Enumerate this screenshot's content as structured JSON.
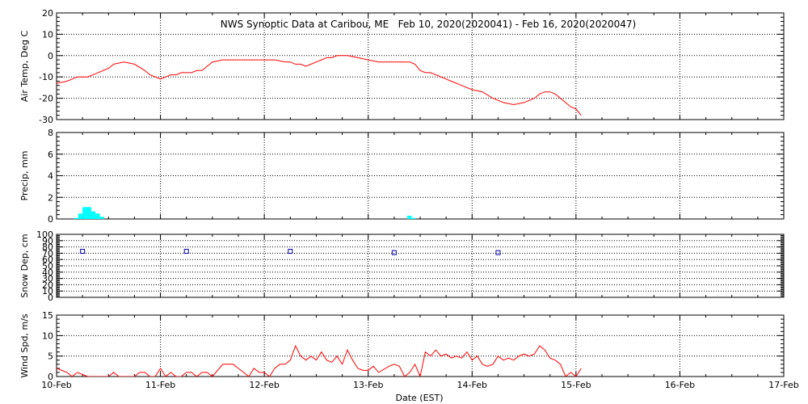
{
  "title": "NWS Synoptic Data at Caribou, ME   Feb 10, 2020(2020041) - Feb 16, 2020(2020047)",
  "xlabel": "Date (EST)",
  "x_ticks": [
    "10-Feb",
    "11-Feb",
    "12-Feb",
    "13-Feb",
    "14-Feb",
    "15-Feb",
    "16-Feb",
    "17-Feb"
  ],
  "colors": {
    "temp": "#ff0000",
    "precip": "#00ffff",
    "snow": "#0000aa",
    "wind": "#ff0000",
    "axis": "#000000"
  },
  "chart_data": [
    {
      "type": "line",
      "ylabel": "Air Temp, Deg C",
      "ylim": [
        -30,
        20
      ],
      "yticks": [
        -30,
        -20,
        -10,
        0,
        10,
        20
      ],
      "grid": true,
      "x_unit": "days since 10-Feb 00:00 EST",
      "series": [
        {
          "color": "#ff0000",
          "x": [
            0,
            0.1,
            0.2,
            0.3,
            0.4,
            0.5,
            0.55,
            0.65,
            0.75,
            0.85,
            0.9,
            0.95,
            1.0,
            1.05,
            1.1,
            1.15,
            1.2,
            1.25,
            1.3,
            1.35,
            1.4,
            1.45,
            1.5,
            1.6,
            1.7,
            1.8,
            1.9,
            2.0,
            2.1,
            2.2,
            2.25,
            2.3,
            2.35,
            2.4,
            2.45,
            2.5,
            2.55,
            2.6,
            2.65,
            2.7,
            2.75,
            2.8,
            2.9,
            3.0,
            3.1,
            3.2,
            3.25,
            3.3,
            3.35,
            3.4,
            3.45,
            3.5,
            3.55,
            3.6,
            3.7,
            3.8,
            3.9,
            4.0,
            4.1,
            4.2,
            4.3,
            4.4,
            4.5,
            4.6,
            4.65,
            4.7,
            4.75,
            4.8,
            4.85,
            4.9,
            4.95,
            5.0,
            5.05
          ],
          "y": [
            -13,
            -12,
            -10,
            -10,
            -8,
            -6,
            -4,
            -3,
            -4,
            -7,
            -9,
            -10,
            -11,
            -10,
            -9,
            -9,
            -8,
            -8,
            -8,
            -7,
            -7,
            -5,
            -3,
            -2,
            -2,
            -2,
            -2,
            -2,
            -2,
            -3,
            -3,
            -4,
            -4,
            -5,
            -4,
            -3,
            -2,
            -1,
            -1,
            0,
            0,
            0,
            -1,
            -2,
            -3,
            -3,
            -3,
            -3,
            -3,
            -3,
            -4,
            -7,
            -8,
            -8,
            -10,
            -12,
            -14,
            -16,
            -17,
            -20,
            -22,
            -23,
            -22,
            -20,
            -18,
            -17,
            -17,
            -18,
            -20,
            -22,
            -24,
            -25,
            -28
          ]
        }
      ]
    },
    {
      "type": "bar",
      "ylabel": "Precip, mm",
      "ylim": [
        0,
        8
      ],
      "yticks": [
        0,
        2,
        4,
        6,
        8
      ],
      "grid": true,
      "x_unit": "days since 10-Feb 00:00 EST",
      "bar_width_days": 0.0417,
      "series": [
        {
          "color": "#00ffff",
          "x": [
            0.167,
            0.208,
            0.25,
            0.292,
            0.333,
            0.375,
            0.417,
            3.375,
            3.417
          ],
          "y": [
            0.1,
            0.5,
            1.1,
            1.1,
            0.7,
            0.5,
            0.2,
            0.3,
            0.1
          ]
        }
      ]
    },
    {
      "type": "scatter",
      "ylabel": "Snow Dep, cm",
      "ylim": [
        0,
        100
      ],
      "yticks": [
        0,
        10,
        20,
        30,
        40,
        50,
        60,
        70,
        80,
        90,
        100
      ],
      "grid": true,
      "x_unit": "days since 10-Feb 00:00 EST",
      "series": [
        {
          "color": "#0000aa",
          "marker": "square",
          "x": [
            0.25,
            1.25,
            2.25,
            3.25,
            4.25
          ],
          "y": [
            73,
            73,
            73,
            71,
            71
          ]
        }
      ]
    },
    {
      "type": "line",
      "ylabel": "Wind Spd, m/s",
      "ylim": [
        0,
        15
      ],
      "yticks": [
        0,
        5,
        10,
        15
      ],
      "grid": true,
      "x_unit": "days since 10-Feb 00:00 EST",
      "series": [
        {
          "color": "#ff0000",
          "x": [
            0,
            0.05,
            0.1,
            0.15,
            0.2,
            0.25,
            0.3,
            0.35,
            0.4,
            0.5,
            0.55,
            0.6,
            0.7,
            0.75,
            0.8,
            0.85,
            0.9,
            0.95,
            1.0,
            1.05,
            1.1,
            1.15,
            1.2,
            1.25,
            1.3,
            1.35,
            1.4,
            1.45,
            1.5,
            1.6,
            1.7,
            1.75,
            1.8,
            1.85,
            1.9,
            1.95,
            2.0,
            2.05,
            2.1,
            2.15,
            2.2,
            2.25,
            2.3,
            2.35,
            2.4,
            2.45,
            2.5,
            2.55,
            2.6,
            2.65,
            2.7,
            2.75,
            2.8,
            2.85,
            2.9,
            2.95,
            3.0,
            3.05,
            3.1,
            3.2,
            3.25,
            3.3,
            3.35,
            3.4,
            3.45,
            3.5,
            3.55,
            3.6,
            3.65,
            3.7,
            3.75,
            3.8,
            3.85,
            3.9,
            3.95,
            4.0,
            4.05,
            4.1,
            4.15,
            4.2,
            4.25,
            4.3,
            4.35,
            4.4,
            4.45,
            4.5,
            4.55,
            4.6,
            4.65,
            4.7,
            4.75,
            4.8,
            4.85,
            4.9,
            4.95,
            5.0,
            5.05
          ],
          "y": [
            2,
            1.5,
            1,
            0,
            1,
            0.5,
            0,
            0,
            0,
            0,
            1,
            0,
            0,
            0,
            1,
            1,
            0,
            0,
            2,
            0,
            1,
            0,
            0,
            1,
            1,
            0,
            1,
            1,
            0,
            3,
            3,
            2,
            1,
            0,
            2,
            1,
            1,
            0,
            2,
            3,
            3,
            4,
            7.5,
            5,
            4,
            5,
            4,
            6,
            4,
            3.5,
            5,
            3,
            6.5,
            4,
            2,
            1.5,
            1.5,
            2.5,
            1,
            2.5,
            3,
            2.5,
            0,
            1,
            3,
            0,
            6,
            5,
            6.5,
            5,
            5.5,
            4.5,
            5,
            4.5,
            6,
            4,
            5,
            3,
            2.5,
            3,
            5,
            4,
            4.5,
            4,
            5,
            5.5,
            5,
            5.5,
            7.5,
            6.5,
            4.5,
            4,
            3,
            0,
            1,
            0,
            2
          ]
        }
      ]
    }
  ]
}
